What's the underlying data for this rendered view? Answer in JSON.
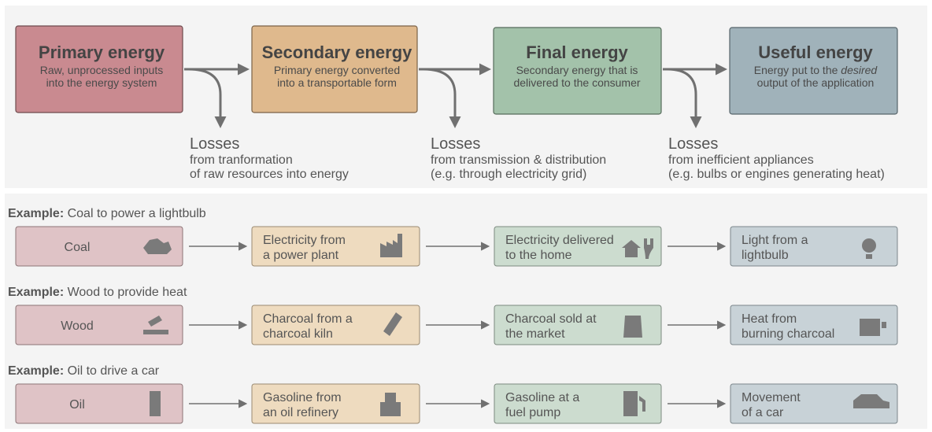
{
  "stages": [
    {
      "title": "Primary energy",
      "lines": [
        "Raw, unprocessed inputs",
        "into the energy system"
      ]
    },
    {
      "title": "Secondary energy",
      "lines": [
        "Primary energy converted",
        "into a transportable form"
      ]
    },
    {
      "title": "Final energy",
      "lines": [
        "Secondary energy that is",
        "delivered to the consumer"
      ]
    },
    {
      "title": "Useful energy",
      "lines": [
        "Energy put to the ",
        "desired",
        "output of the application"
      ]
    }
  ],
  "losses": [
    {
      "title": "Losses",
      "lines": [
        "from tranformation",
        "of raw resources into energy"
      ]
    },
    {
      "title": "Losses",
      "lines": [
        "from transmission & distribution",
        "(e.g. through electricity grid)"
      ]
    },
    {
      "title": "Losses",
      "lines": [
        "from inefficient appliances",
        "(e.g. bulbs or engines generating heat)"
      ]
    }
  ],
  "examples": [
    {
      "prefix": "Example:",
      "title": " Coal to power a lightbulb",
      "boxes": [
        [
          "Coal"
        ],
        [
          "Electricity from",
          "a power plant"
        ],
        [
          "Electricity delivered",
          "to the home"
        ],
        [
          "Light from a",
          "lightbulb"
        ]
      ]
    },
    {
      "prefix": "Example:",
      "title": " Wood to provide heat",
      "boxes": [
        [
          "Wood"
        ],
        [
          "Charcoal from a",
          "charcoal kiln"
        ],
        [
          "Charcoal sold at",
          "the market"
        ],
        [
          "Heat from",
          "burning charcoal"
        ]
      ]
    },
    {
      "prefix": "Example:",
      "title": " Oil to drive a car",
      "boxes": [
        [
          "Oil"
        ],
        [
          "Gasoline from",
          "an oil refinery"
        ],
        [
          "Gasoline at a",
          "fuel pump"
        ],
        [
          "Movement",
          "of a car"
        ]
      ]
    }
  ]
}
